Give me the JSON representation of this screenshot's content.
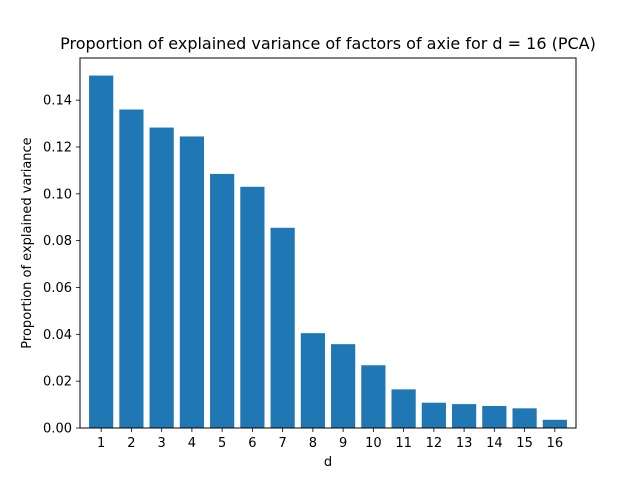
{
  "chart_data": {
    "type": "bar",
    "title": "Proportion of explained variance of factors of axie for d = 16 (PCA)",
    "xlabel": "d",
    "ylabel": "Proportion of explained variance",
    "categories": [
      "1",
      "2",
      "3",
      "4",
      "5",
      "6",
      "7",
      "8",
      "9",
      "10",
      "11",
      "12",
      "13",
      "14",
      "15",
      "16"
    ],
    "values": [
      0.1505,
      0.136,
      0.1283,
      0.1245,
      0.1085,
      0.103,
      0.0855,
      0.0405,
      0.0358,
      0.0268,
      0.0165,
      0.0108,
      0.0102,
      0.0094,
      0.0084,
      0.0035
    ],
    "ylim": [
      0,
      0.158
    ],
    "yticks": [
      "0.00",
      "0.02",
      "0.04",
      "0.06",
      "0.08",
      "0.10",
      "0.12",
      "0.14"
    ],
    "bar_color": "#1f77b4",
    "grid": false
  }
}
